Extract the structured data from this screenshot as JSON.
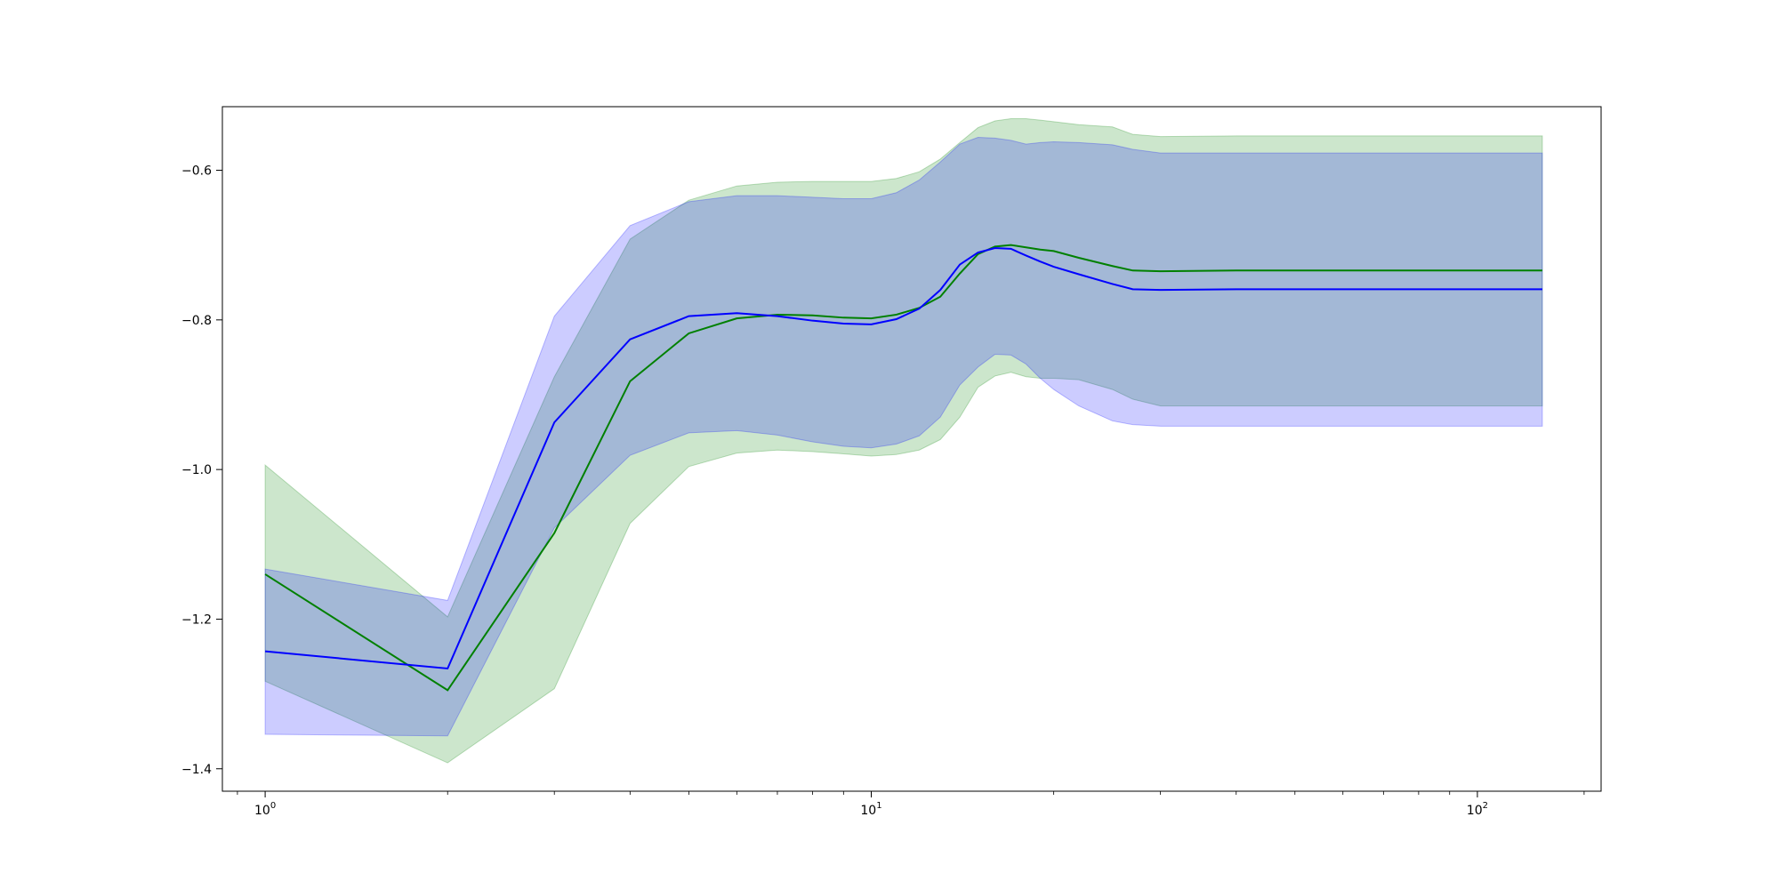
{
  "chart_data": {
    "type": "area",
    "x_scale": "log",
    "xlim": [
      0.85,
      160
    ],
    "ylim": [
      -1.43,
      -0.515
    ],
    "grid": false,
    "legend": "none",
    "x_ticks": [
      {
        "value": 1,
        "base": "10",
        "exp": "0"
      },
      {
        "value": 10,
        "base": "10",
        "exp": "1"
      },
      {
        "value": 100,
        "base": "10",
        "exp": "2"
      }
    ],
    "y_ticks": [
      {
        "value": -0.6,
        "label": "−0.6"
      },
      {
        "value": -0.8,
        "label": "−0.8"
      },
      {
        "value": -1.0,
        "label": "−1.0"
      },
      {
        "value": -1.2,
        "label": "−1.2"
      },
      {
        "value": -1.4,
        "label": "−1.4"
      }
    ],
    "series": [
      {
        "color": "#008000",
        "band_color": "#008000",
        "x": [
          1,
          2,
          3,
          4,
          5,
          6,
          7,
          8,
          9,
          10,
          11,
          12,
          13,
          14,
          15,
          16,
          17,
          18,
          19,
          20,
          22,
          25,
          27,
          30,
          40,
          60,
          80,
          100,
          128
        ],
        "mean": [
          -1.14,
          -1.295,
          -1.085,
          -0.882,
          -0.818,
          -0.798,
          -0.793,
          -0.794,
          -0.797,
          -0.798,
          -0.793,
          -0.784,
          -0.769,
          -0.738,
          -0.712,
          -0.702,
          -0.7,
          -0.703,
          -0.706,
          -0.708,
          -0.717,
          -0.728,
          -0.734,
          -0.735,
          -0.734,
          -0.734,
          -0.734,
          -0.734,
          -0.734
        ],
        "upper": [
          -0.994,
          -1.197,
          -0.876,
          -0.692,
          -0.64,
          -0.621,
          -0.616,
          -0.615,
          -0.615,
          -0.615,
          -0.611,
          -0.602,
          -0.585,
          -0.563,
          -0.543,
          -0.534,
          -0.531,
          -0.531,
          -0.533,
          -0.535,
          -0.539,
          -0.542,
          -0.552,
          -0.555,
          -0.554,
          -0.554,
          -0.554,
          -0.554,
          -0.554
        ],
        "lower": [
          -1.283,
          -1.392,
          -1.293,
          -1.072,
          -0.996,
          -0.978,
          -0.974,
          -0.976,
          -0.979,
          -0.982,
          -0.98,
          -0.974,
          -0.96,
          -0.93,
          -0.89,
          -0.875,
          -0.87,
          -0.876,
          -0.878,
          -0.878,
          -0.88,
          -0.893,
          -0.906,
          -0.915,
          -0.915,
          -0.915,
          -0.915,
          -0.915,
          -0.915
        ]
      },
      {
        "color": "#0000ff",
        "band_color": "#0000ff",
        "x": [
          1,
          2,
          3,
          4,
          5,
          6,
          7,
          8,
          9,
          10,
          11,
          12,
          13,
          14,
          15,
          16,
          17,
          18,
          19,
          20,
          22,
          25,
          27,
          30,
          40,
          60,
          80,
          100,
          128
        ],
        "mean": [
          -1.243,
          -1.266,
          -0.937,
          -0.826,
          -0.795,
          -0.791,
          -0.795,
          -0.801,
          -0.805,
          -0.806,
          -0.799,
          -0.785,
          -0.76,
          -0.726,
          -0.71,
          -0.704,
          -0.705,
          -0.714,
          -0.722,
          -0.729,
          -0.739,
          -0.752,
          -0.759,
          -0.76,
          -0.759,
          -0.759,
          -0.759,
          -0.759,
          -0.759
        ],
        "upper": [
          -1.133,
          -1.175,
          -0.795,
          -0.674,
          -0.642,
          -0.634,
          -0.634,
          -0.636,
          -0.638,
          -0.638,
          -0.63,
          -0.613,
          -0.589,
          -0.565,
          -0.556,
          -0.557,
          -0.56,
          -0.565,
          -0.563,
          -0.562,
          -0.563,
          -0.566,
          -0.572,
          -0.577,
          -0.577,
          -0.577,
          -0.577,
          -0.577,
          -0.577
        ],
        "lower": [
          -1.354,
          -1.356,
          -1.078,
          -0.981,
          -0.951,
          -0.948,
          -0.954,
          -0.963,
          -0.969,
          -0.971,
          -0.966,
          -0.955,
          -0.93,
          -0.887,
          -0.863,
          -0.846,
          -0.847,
          -0.859,
          -0.878,
          -0.893,
          -0.915,
          -0.935,
          -0.94,
          -0.942,
          -0.942,
          -0.942,
          -0.942,
          -0.942,
          -0.942
        ]
      }
    ]
  }
}
